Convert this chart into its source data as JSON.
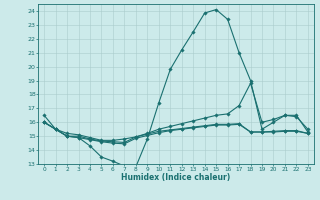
{
  "xlabel": "Humidex (Indice chaleur)",
  "bg_color": "#cceaea",
  "line_color": "#1a7070",
  "grid_color": "#aacccc",
  "xlim": [
    -0.5,
    23.5
  ],
  "ylim": [
    13,
    24.5
  ],
  "yticks": [
    13,
    14,
    15,
    16,
    17,
    18,
    19,
    20,
    21,
    22,
    23,
    24
  ],
  "xticks": [
    0,
    1,
    2,
    3,
    4,
    5,
    6,
    7,
    8,
    9,
    10,
    11,
    12,
    13,
    14,
    15,
    16,
    17,
    18,
    19,
    20,
    21,
    22,
    23
  ],
  "line1_x": [
    0,
    1,
    2,
    3,
    4,
    5,
    6,
    7,
    8,
    9,
    10,
    11,
    12,
    13,
    14,
    15,
    16,
    17,
    18,
    19,
    20,
    21,
    22,
    23
  ],
  "line1_y": [
    16.5,
    15.5,
    15.0,
    14.9,
    14.3,
    13.5,
    13.2,
    12.85,
    12.8,
    14.8,
    17.4,
    19.8,
    21.2,
    22.5,
    23.85,
    24.1,
    23.4,
    21.0,
    19.0,
    15.5,
    16.0,
    16.5,
    16.5,
    15.3
  ],
  "line2_x": [
    0,
    1,
    2,
    3,
    4,
    5,
    6,
    7,
    8,
    9,
    10,
    11,
    12,
    13,
    14,
    15,
    16,
    17,
    18,
    19,
    20,
    21,
    22,
    23
  ],
  "line2_y": [
    16.0,
    15.5,
    15.2,
    15.1,
    14.9,
    14.7,
    14.7,
    14.8,
    14.95,
    15.2,
    15.5,
    15.7,
    15.9,
    16.1,
    16.3,
    16.5,
    16.6,
    17.2,
    18.8,
    16.0,
    16.2,
    16.5,
    16.4,
    15.5
  ],
  "line3_x": [
    0,
    1,
    2,
    3,
    4,
    5,
    6,
    7,
    8,
    9,
    10,
    11,
    12,
    13,
    14,
    15,
    16,
    17,
    18,
    19,
    20,
    21,
    22,
    23
  ],
  "line3_y": [
    16.0,
    15.5,
    15.0,
    15.0,
    14.8,
    14.65,
    14.6,
    14.55,
    14.95,
    15.15,
    15.35,
    15.45,
    15.55,
    15.65,
    15.75,
    15.85,
    15.85,
    15.9,
    15.3,
    15.3,
    15.35,
    15.4,
    15.4,
    15.2
  ],
  "line4_x": [
    0,
    1,
    2,
    3,
    4,
    5,
    6,
    7,
    8,
    9,
    10,
    11,
    12,
    13,
    14,
    15,
    16,
    17,
    18,
    19,
    20,
    21,
    22,
    23
  ],
  "line4_y": [
    16.0,
    15.5,
    15.0,
    14.9,
    14.75,
    14.6,
    14.5,
    14.45,
    14.85,
    15.05,
    15.25,
    15.4,
    15.5,
    15.6,
    15.7,
    15.8,
    15.8,
    15.85,
    15.3,
    15.3,
    15.3,
    15.35,
    15.35,
    15.2
  ]
}
